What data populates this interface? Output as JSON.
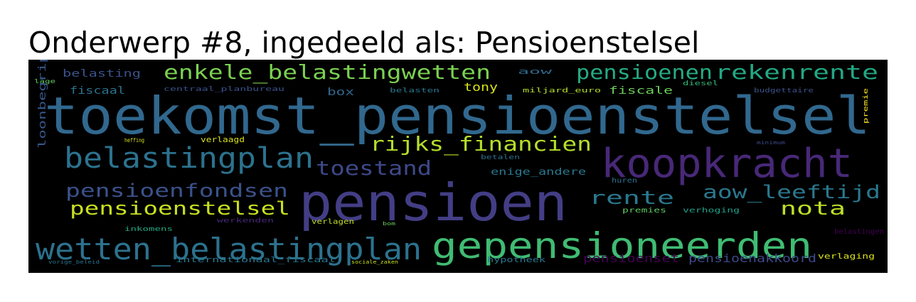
{
  "title": "Onderwerp #8, ingedeeld als: Pensioenstelsel",
  "wordcloud": {
    "background": "#000000",
    "words": [
      {
        "text": "toekomst_pensioenstelsel",
        "color": "#31688e"
      },
      {
        "text": "pensioen",
        "color": "#433e85"
      },
      {
        "text": "koopkracht",
        "color": "#482878"
      },
      {
        "text": "gepensioneerden",
        "color": "#3fbc73"
      },
      {
        "text": "wetten_belastingplan",
        "color": "#2c728e"
      },
      {
        "text": "belastingplan",
        "color": "#2c728e"
      },
      {
        "text": "pensioenen",
        "color": "#25ab82"
      },
      {
        "text": "rekenrente",
        "color": "#22a884"
      },
      {
        "text": "enkele_belastingwetten",
        "color": "#7ad151"
      },
      {
        "text": "rijks_financien",
        "color": "#b5de2b"
      },
      {
        "text": "toestand",
        "color": "#3e4989"
      },
      {
        "text": "pensioenfondsen",
        "color": "#3b528b"
      },
      {
        "text": "pensioenstelsel",
        "color": "#c8e020"
      },
      {
        "text": "aow_leeftijd",
        "color": "#2a788e"
      },
      {
        "text": "rente",
        "color": "#2a788e"
      },
      {
        "text": "nota",
        "color": "#bddf26"
      },
      {
        "text": "loonbegrip",
        "color": "#38588c"
      },
      {
        "text": "pensioenakkoord",
        "color": "#3e4989"
      },
      {
        "text": "pensioenset",
        "color": "#440154"
      },
      {
        "text": "belasting",
        "color": "#3b528b"
      },
      {
        "text": "fiscaal",
        "color": "#2c728e"
      },
      {
        "text": "lage",
        "color": "#5ec962"
      },
      {
        "text": "centraal_planbureau",
        "color": "#3b528b"
      },
      {
        "text": "box",
        "color": "#31688e"
      },
      {
        "text": "belasten",
        "color": "#2a788e"
      },
      {
        "text": "aow",
        "color": "#31688e"
      },
      {
        "text": "tony",
        "color": "#d8e219"
      },
      {
        "text": "miljard_euro",
        "color": "#b5de2b"
      },
      {
        "text": "fiscale",
        "color": "#6ccd5a"
      },
      {
        "text": "diesel",
        "color": "#35b779"
      },
      {
        "text": "budgettaire",
        "color": "#3b528b"
      },
      {
        "text": "premie",
        "color": "#fde725"
      },
      {
        "text": "heffing",
        "color": "#d8e219"
      },
      {
        "text": "verlaagd",
        "color": "#d8e219"
      },
      {
        "text": "betalen",
        "color": "#2c728e"
      },
      {
        "text": "enige_andere",
        "color": "#2a788e"
      },
      {
        "text": "huren",
        "color": "#2c728e"
      },
      {
        "text": "premies",
        "color": "#5ec962"
      },
      {
        "text": "verhoging",
        "color": "#1fa188"
      },
      {
        "text": "inkomens",
        "color": "#25ab82"
      },
      {
        "text": "werkenden",
        "color": "#482878"
      },
      {
        "text": "verlagen",
        "color": "#c2df23"
      },
      {
        "text": "bom",
        "color": "#6ccd5a"
      },
      {
        "text": "belastingen",
        "color": "#440154"
      },
      {
        "text": "hypotheek",
        "color": "#2a788e"
      },
      {
        "text": "verlaging",
        "color": "#d8e219"
      },
      {
        "text": "vorige_beleid",
        "color": "#2c728e"
      },
      {
        "text": "internationaal_fiscaal",
        "color": "#2a788e"
      },
      {
        "text": "sociale_zaken",
        "color": "#c8e020"
      },
      {
        "text": "minimum",
        "color": "#3e4989"
      }
    ]
  }
}
